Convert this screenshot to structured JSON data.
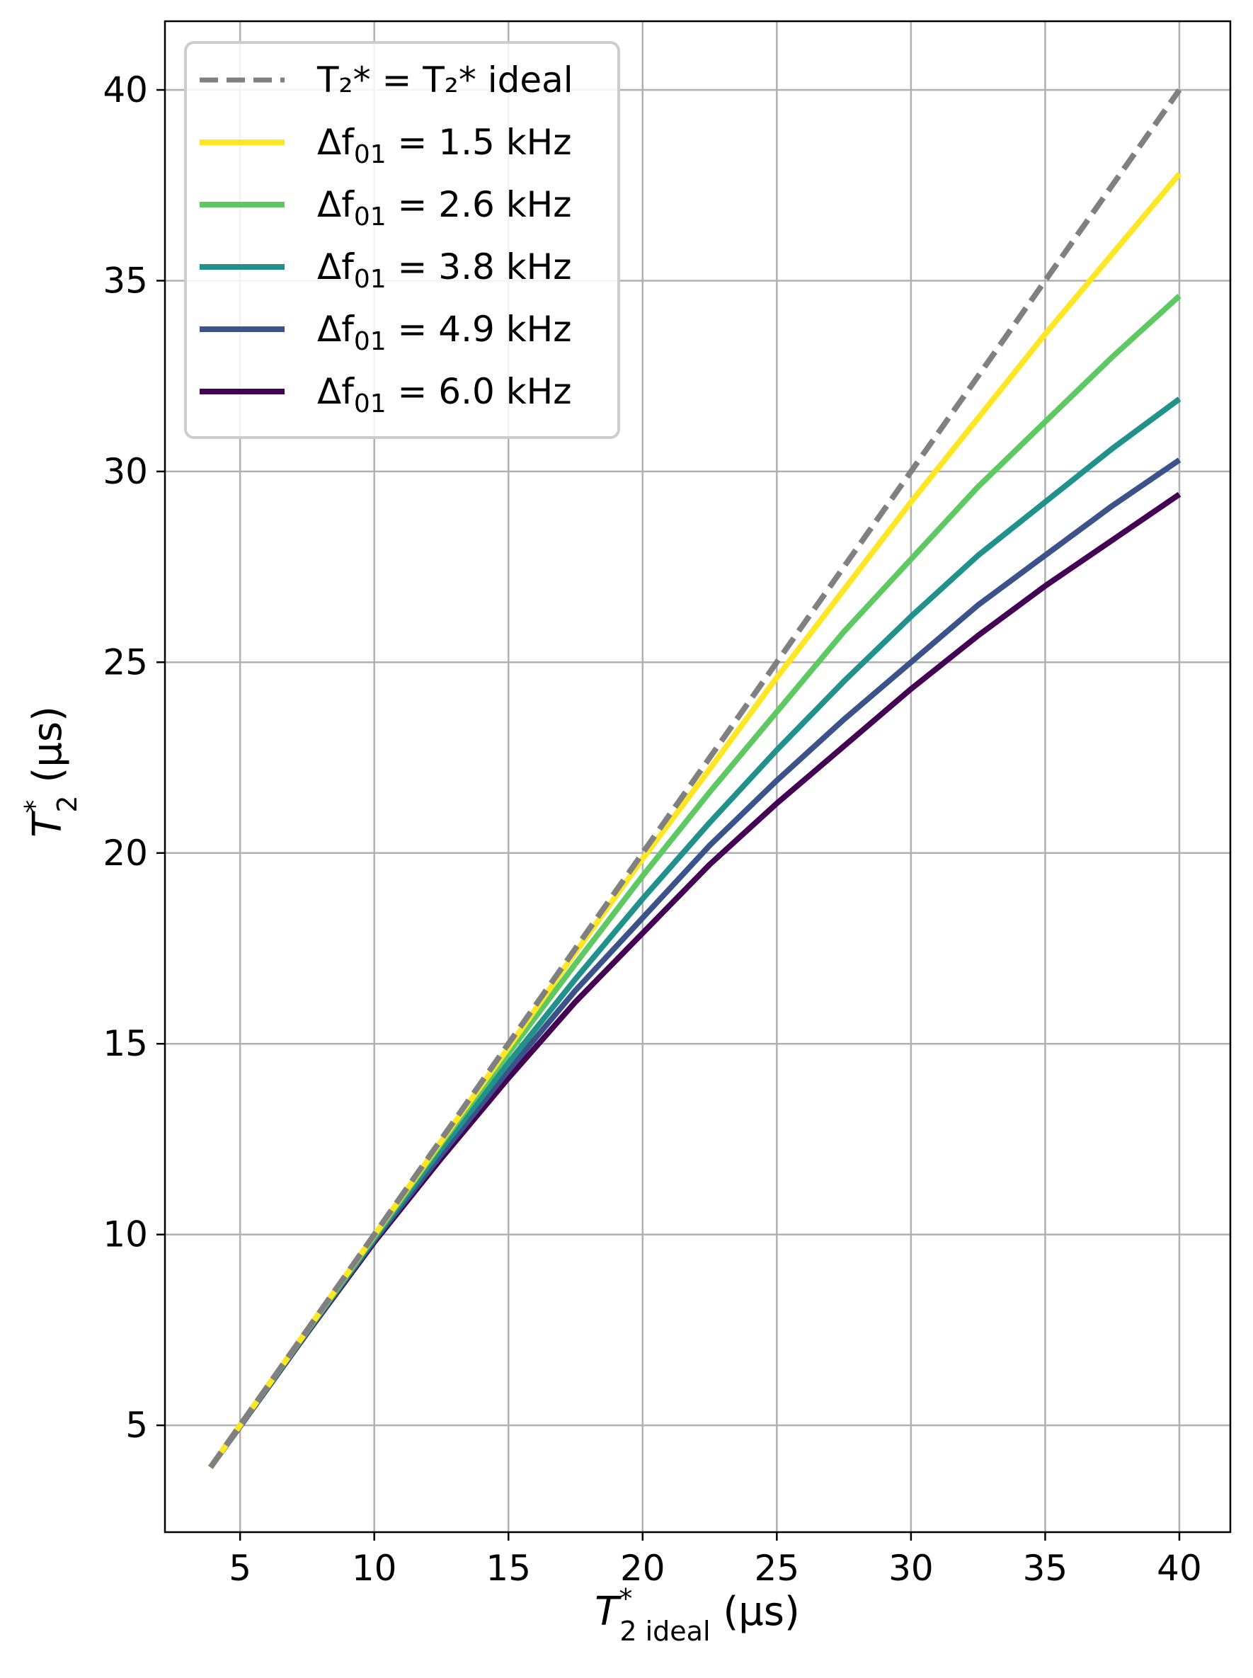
{
  "chart_data": {
    "type": "line",
    "title": "",
    "xlabel": {
      "main": "T",
      "sup": "*",
      "sub": "2 ideal",
      "unit": " (μs)"
    },
    "ylabel": {
      "main": "T",
      "sup": "*",
      "sub": "2",
      "unit": " (μs)"
    },
    "xlim": [
      2.2,
      41.9
    ],
    "ylim": [
      2.2,
      41.8
    ],
    "xticks": [
      5,
      10,
      15,
      20,
      25,
      30,
      35,
      40
    ],
    "yticks": [
      5,
      10,
      15,
      20,
      25,
      30,
      35,
      40
    ],
    "xtick_labels": [
      "5",
      "10",
      "15",
      "20",
      "25",
      "30",
      "35",
      "40"
    ],
    "ytick_labels": [
      "5",
      "10",
      "15",
      "20",
      "25",
      "30",
      "35",
      "40"
    ],
    "grid": true,
    "legend_position": "top-left",
    "x": [
      3.9,
      5,
      7.5,
      10,
      12.5,
      15,
      17.5,
      20,
      22.5,
      25,
      27.5,
      30,
      32.5,
      35,
      37.5,
      40
    ],
    "series": [
      {
        "name": "6.0 kHz",
        "legend_prefix": "Δf",
        "legend_sub": "01",
        "legend_eq": " = ",
        "color": "#440154",
        "dashed": false,
        "values": [
          3.9,
          4.97,
          7.42,
          9.8,
          12.0,
          14.1,
          16.1,
          17.9,
          19.7,
          21.3,
          22.8,
          24.3,
          25.7,
          27.0,
          28.2,
          29.4
        ]
      },
      {
        "name": "4.9 kHz",
        "legend_prefix": "Δf",
        "legend_sub": "01",
        "legend_eq": " = ",
        "color": "#3b528b",
        "dashed": false,
        "values": [
          3.9,
          4.98,
          7.44,
          9.85,
          12.1,
          14.3,
          16.4,
          18.3,
          20.2,
          21.9,
          23.5,
          25.0,
          26.5,
          27.8,
          29.1,
          30.3
        ]
      },
      {
        "name": "3.8 kHz",
        "legend_prefix": "Δf",
        "legend_sub": "01",
        "legend_eq": " = ",
        "color": "#21918c",
        "dashed": false,
        "values": [
          3.9,
          4.99,
          7.46,
          9.9,
          12.25,
          14.5,
          16.7,
          18.8,
          20.8,
          22.7,
          24.5,
          26.2,
          27.8,
          29.2,
          30.6,
          31.9
        ]
      },
      {
        "name": "2.6 kHz",
        "legend_prefix": "Δf",
        "legend_sub": "01",
        "legend_eq": " = ",
        "color": "#5ec962",
        "dashed": false,
        "values": [
          3.9,
          5.0,
          7.48,
          9.95,
          12.4,
          14.75,
          17.1,
          19.4,
          21.6,
          23.7,
          25.8,
          27.7,
          29.6,
          31.3,
          33.0,
          34.6
        ]
      },
      {
        "name": "1.5 kHz",
        "legend_prefix": "Δf",
        "legend_sub": "01",
        "legend_eq": " = ",
        "color": "#fde725",
        "dashed": false,
        "values": [
          3.9,
          5.0,
          7.5,
          9.98,
          12.45,
          14.9,
          17.4,
          19.85,
          22.2,
          24.6,
          26.9,
          29.2,
          31.4,
          33.6,
          35.7,
          37.8
        ]
      },
      {
        "name": "ideal",
        "legend_label": "T₂* = T₂* ideal",
        "color": "#808080",
        "dashed": true,
        "values": [
          3.9,
          5,
          7.5,
          10,
          12.5,
          15,
          17.5,
          20,
          22.5,
          25,
          27.5,
          30,
          32.5,
          35,
          37.5,
          40
        ]
      }
    ],
    "legend_order": [
      "ideal",
      "1.5 kHz",
      "2.6 kHz",
      "3.8 kHz",
      "4.9 kHz",
      "6.0 kHz"
    ]
  }
}
